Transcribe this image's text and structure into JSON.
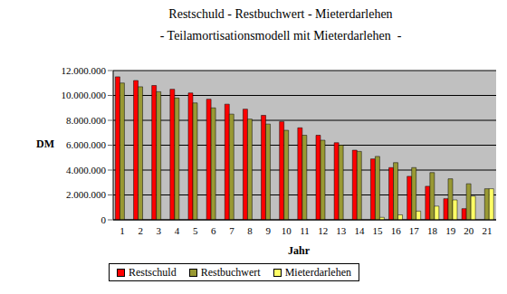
{
  "chart_data": {
    "type": "bar",
    "title": "Restschuld - Restbuchwert - Mieterdarlehen",
    "subtitle": "- Teilamortisationsmodell mit Mieterdarlehen  -",
    "x_label": "Jahr",
    "y_label": "DM",
    "categories": [
      "1",
      "2",
      "3",
      "4",
      "5",
      "6",
      "7",
      "8",
      "9",
      "10",
      "11",
      "12",
      "13",
      "14",
      "15",
      "16",
      "17",
      "18",
      "19",
      "20",
      "21"
    ],
    "series": [
      {
        "name": "Restschuld",
        "color": "#ff0000",
        "values": [
          11500000,
          11200000,
          10800000,
          10500000,
          10200000,
          9700000,
          9300000,
          8900000,
          8400000,
          7900000,
          7400000,
          6800000,
          6200000,
          5600000,
          4900000,
          4200000,
          3500000,
          2700000,
          1700000,
          900000,
          0
        ]
      },
      {
        "name": "Restbuchwert",
        "color": "#999933",
        "values": [
          11000000,
          10700000,
          10300000,
          9800000,
          9400000,
          9000000,
          8500000,
          8100000,
          7700000,
          7200000,
          6800000,
          6400000,
          6000000,
          5500000,
          5100000,
          4600000,
          4200000,
          3800000,
          3300000,
          2900000,
          2500000
        ]
      },
      {
        "name": "Mieterdarlehen",
        "color": "#ffff66",
        "values": [
          0,
          0,
          0,
          0,
          0,
          0,
          0,
          0,
          0,
          0,
          0,
          0,
          0,
          0,
          200000,
          400000,
          700000,
          1100000,
          1600000,
          1900000,
          2500000
        ]
      }
    ],
    "ylim": [
      0,
      12000000
    ],
    "yticks": [
      0,
      {
        "value": 2000000,
        "label": "2.000.000"
      },
      {
        "value": 4000000,
        "label": "4.000.000"
      },
      {
        "value": 6000000,
        "label": "6.000.000"
      },
      {
        "value": 8000000,
        "label": "8.000.000"
      },
      {
        "value": 10000000,
        "label": "10.000.000"
      },
      {
        "value": 12000000,
        "label": "12.000.000"
      }
    ],
    "grid": true,
    "legend": "bottom"
  }
}
